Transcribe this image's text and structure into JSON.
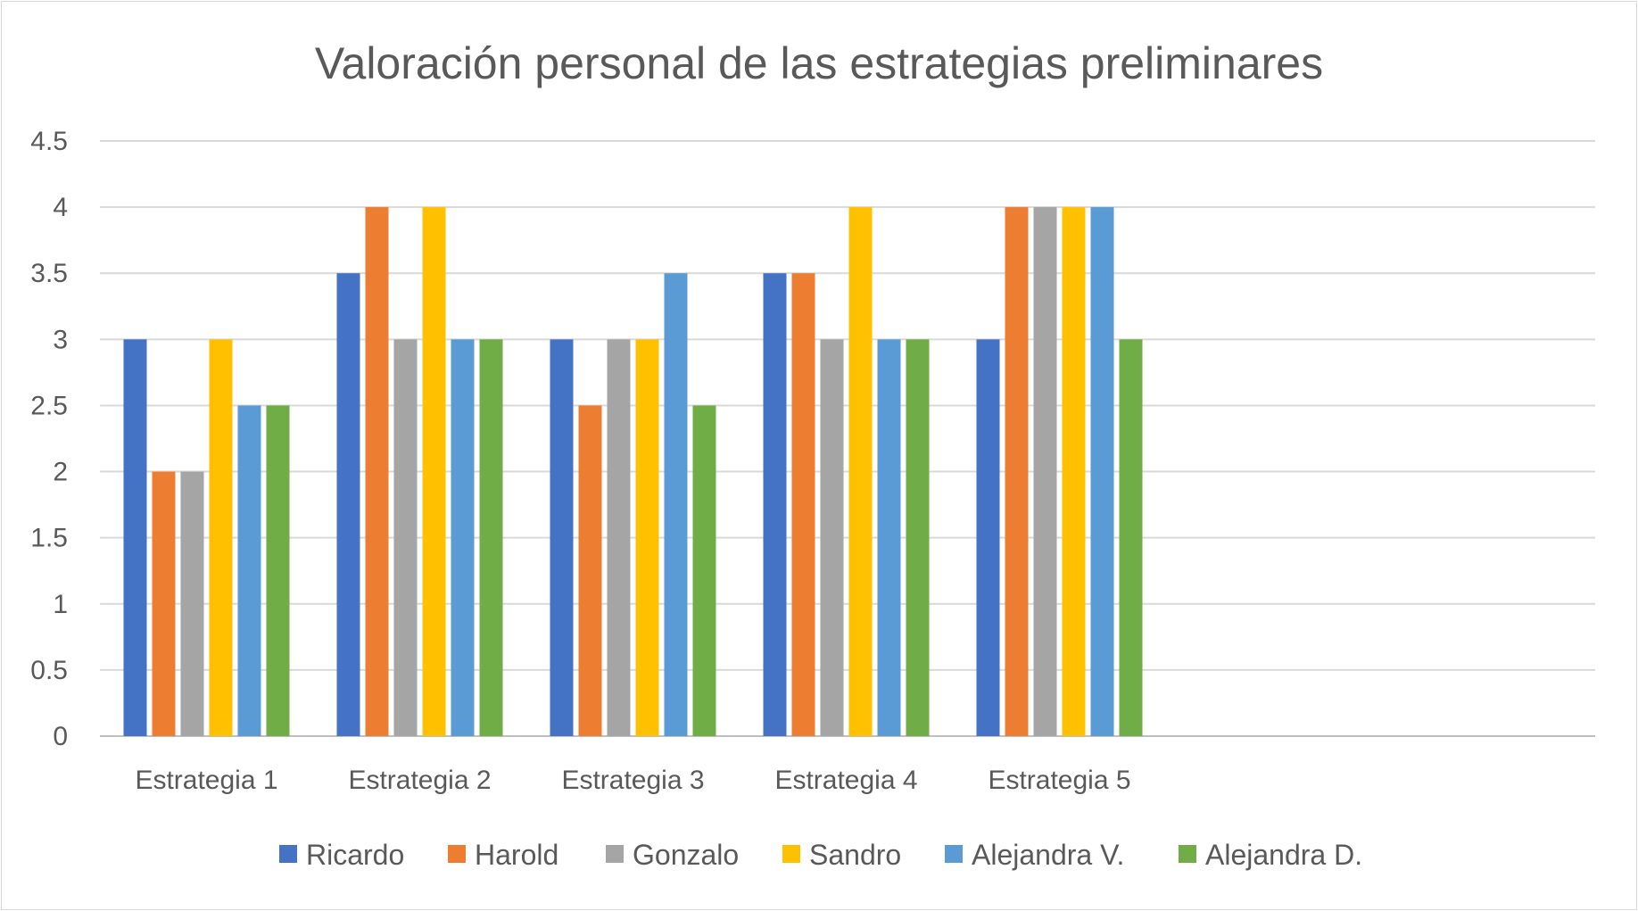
{
  "chart_data": {
    "type": "bar",
    "title": "Valoración personal de las estrategias preliminares",
    "xlabel": "",
    "ylabel": "",
    "categories": [
      "Estrategia 1",
      "Estrategia 2",
      "Estrategia 3",
      "Estrategia 4",
      "Estrategia 5"
    ],
    "y_ticks": [
      "0",
      "0.5",
      "1",
      "1.5",
      "2",
      "2.5",
      "3",
      "3.5",
      "4",
      "4.5"
    ],
    "ylim": [
      0,
      4.5
    ],
    "grid": true,
    "legend_position": "bottom",
    "series": [
      {
        "name": "Ricardo",
        "color": "#4472C4",
        "values": [
          3,
          3.5,
          3,
          3.5,
          3
        ]
      },
      {
        "name": "Harold",
        "color": "#ED7D31",
        "values": [
          2,
          4,
          2.5,
          3.5,
          4
        ]
      },
      {
        "name": "Gonzalo",
        "color": "#A5A5A5",
        "values": [
          2,
          3,
          3,
          3,
          4
        ]
      },
      {
        "name": "Sandro",
        "color": "#FFC000",
        "values": [
          3,
          4,
          3,
          4,
          4
        ]
      },
      {
        "name": "Alejandra V.",
        "color": "#5B9BD5",
        "values": [
          2.5,
          3,
          3.5,
          3,
          4
        ]
      },
      {
        "name": "Alejandra D.",
        "color": "#70AD47",
        "values": [
          2.5,
          3,
          2.5,
          3,
          3
        ]
      }
    ]
  }
}
